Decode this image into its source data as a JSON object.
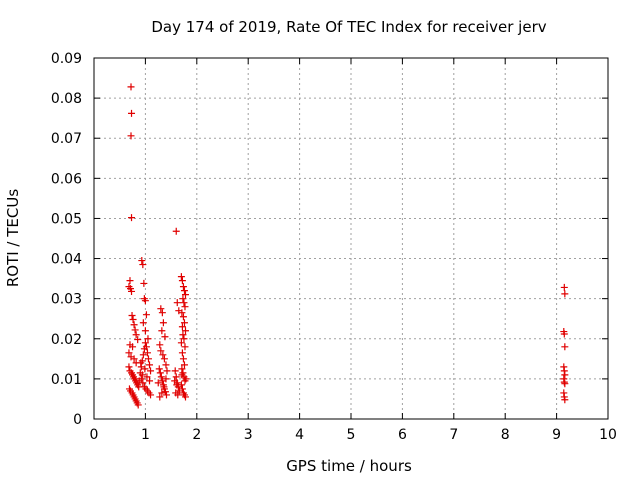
{
  "chart_data": {
    "type": "scatter",
    "title": "Day 174 of 2019, Rate Of TEC Index for receiver jerv",
    "xlabel": "GPS time / hours",
    "ylabel": "ROTI / TECUs",
    "xlim": [
      0,
      10
    ],
    "ylim": [
      0,
      0.09
    ],
    "x_ticks": [
      "0",
      "1",
      "2",
      "3",
      "4",
      "5",
      "6",
      "7",
      "8",
      "9",
      "10"
    ],
    "y_ticks": [
      "0",
      "0.01",
      "0.02",
      "0.03",
      "0.04",
      "0.05",
      "0.06",
      "0.07",
      "0.08",
      "0.09"
    ],
    "grid": true,
    "marker": "+",
    "color": "#e00000",
    "series": [
      {
        "name": "ROTI",
        "points": [
          [
            0.72,
            0.0828
          ],
          [
            0.73,
            0.0762
          ],
          [
            0.72,
            0.0706
          ],
          [
            0.73,
            0.0502
          ],
          [
            0.68,
            0.033
          ],
          [
            0.7,
            0.0345
          ],
          [
            0.71,
            0.0325
          ],
          [
            0.73,
            0.0318
          ],
          [
            0.74,
            0.0258
          ],
          [
            0.76,
            0.0248
          ],
          [
            0.78,
            0.0235
          ],
          [
            0.8,
            0.0222
          ],
          [
            0.82,
            0.021
          ],
          [
            0.85,
            0.0198
          ],
          [
            0.7,
            0.0185
          ],
          [
            0.75,
            0.018
          ],
          [
            0.68,
            0.0165
          ],
          [
            0.72,
            0.0155
          ],
          [
            0.78,
            0.015
          ],
          [
            0.82,
            0.014
          ],
          [
            0.68,
            0.013
          ],
          [
            0.7,
            0.012
          ],
          [
            0.73,
            0.0115
          ],
          [
            0.75,
            0.011
          ],
          [
            0.77,
            0.0105
          ],
          [
            0.79,
            0.01
          ],
          [
            0.81,
            0.0095
          ],
          [
            0.83,
            0.009
          ],
          [
            0.85,
            0.0085
          ],
          [
            0.87,
            0.008
          ],
          [
            0.69,
            0.0075
          ],
          [
            0.71,
            0.007
          ],
          [
            0.74,
            0.0065
          ],
          [
            0.76,
            0.006
          ],
          [
            0.78,
            0.0055
          ],
          [
            0.8,
            0.005
          ],
          [
            0.82,
            0.0045
          ],
          [
            0.84,
            0.004
          ],
          [
            0.86,
            0.0035
          ],
          [
            0.88,
            0.0095
          ],
          [
            0.9,
            0.0115
          ],
          [
            0.92,
            0.013
          ],
          [
            0.94,
            0.0145
          ],
          [
            0.96,
            0.016
          ],
          [
            0.98,
            0.0175
          ],
          [
            1.0,
            0.019
          ],
          [
            1.02,
            0.018
          ],
          [
            1.04,
            0.0165
          ],
          [
            1.06,
            0.015
          ],
          [
            1.08,
            0.0135
          ],
          [
            1.1,
            0.012
          ],
          [
            0.93,
            0.0395
          ],
          [
            0.95,
            0.0385
          ],
          [
            0.97,
            0.0338
          ],
          [
            0.98,
            0.03
          ],
          [
            1.0,
            0.0295
          ],
          [
            1.02,
            0.026
          ],
          [
            0.96,
            0.024
          ],
          [
            1.0,
            0.022
          ],
          [
            1.05,
            0.02
          ],
          [
            0.92,
            0.01
          ],
          [
            0.95,
            0.009
          ],
          [
            0.98,
            0.008
          ],
          [
            1.01,
            0.0075
          ],
          [
            1.04,
            0.007
          ],
          [
            1.07,
            0.0065
          ],
          [
            1.1,
            0.006
          ],
          [
            0.94,
            0.011
          ],
          [
            0.99,
            0.0125
          ],
          [
            1.03,
            0.0105
          ],
          [
            1.08,
            0.0095
          ],
          [
            0.91,
            0.014
          ],
          [
            1.3,
            0.0275
          ],
          [
            1.33,
            0.0265
          ],
          [
            1.35,
            0.024
          ],
          [
            1.32,
            0.022
          ],
          [
            1.38,
            0.0205
          ],
          [
            1.28,
            0.0185
          ],
          [
            1.3,
            0.017
          ],
          [
            1.34,
            0.016
          ],
          [
            1.37,
            0.015
          ],
          [
            1.4,
            0.0135
          ],
          [
            1.27,
            0.0125
          ],
          [
            1.29,
            0.0115
          ],
          [
            1.31,
            0.0105
          ],
          [
            1.33,
            0.0095
          ],
          [
            1.35,
            0.0085
          ],
          [
            1.37,
            0.0075
          ],
          [
            1.39,
            0.0068
          ],
          [
            1.41,
            0.006
          ],
          [
            1.28,
            0.0055
          ],
          [
            1.32,
            0.0065
          ],
          [
            1.36,
            0.008
          ],
          [
            1.4,
            0.01
          ],
          [
            1.42,
            0.012
          ],
          [
            1.25,
            0.009
          ],
          [
            1.6,
            0.0468
          ],
          [
            1.62,
            0.029
          ],
          [
            1.65,
            0.027
          ],
          [
            1.58,
            0.012
          ],
          [
            1.6,
            0.0105
          ],
          [
            1.62,
            0.009
          ],
          [
            1.64,
            0.008
          ],
          [
            1.66,
            0.007
          ],
          [
            1.59,
            0.0065
          ],
          [
            1.63,
            0.006
          ],
          [
            1.61,
            0.0085
          ],
          [
            1.57,
            0.0095
          ],
          [
            1.7,
            0.0355
          ],
          [
            1.72,
            0.0345
          ],
          [
            1.74,
            0.033
          ],
          [
            1.76,
            0.032
          ],
          [
            1.78,
            0.031
          ],
          [
            1.73,
            0.03
          ],
          [
            1.75,
            0.029
          ],
          [
            1.77,
            0.028
          ],
          [
            1.71,
            0.0265
          ],
          [
            1.74,
            0.0255
          ],
          [
            1.76,
            0.024
          ],
          [
            1.72,
            0.023
          ],
          [
            1.78,
            0.022
          ],
          [
            1.73,
            0.021
          ],
          [
            1.75,
            0.02
          ],
          [
            1.7,
            0.019
          ],
          [
            1.77,
            0.018
          ],
          [
            1.72,
            0.0165
          ],
          [
            1.74,
            0.015
          ],
          [
            1.76,
            0.0135
          ],
          [
            1.71,
            0.0125
          ],
          [
            1.73,
            0.0115
          ],
          [
            1.75,
            0.0105
          ],
          [
            1.77,
            0.0095
          ],
          [
            1.7,
            0.0085
          ],
          [
            1.72,
            0.0075
          ],
          [
            1.74,
            0.0065
          ],
          [
            1.76,
            0.006
          ],
          [
            1.78,
            0.0055
          ],
          [
            1.71,
            0.011
          ],
          [
            1.79,
            0.01
          ],
          [
            9.15,
            0.0328
          ],
          [
            9.16,
            0.0312
          ],
          [
            9.14,
            0.0218
          ],
          [
            9.15,
            0.0212
          ],
          [
            9.16,
            0.018
          ],
          [
            9.14,
            0.013
          ],
          [
            9.15,
            0.012
          ],
          [
            9.16,
            0.011
          ],
          [
            9.14,
            0.01
          ],
          [
            9.15,
            0.0092
          ],
          [
            9.16,
            0.0088
          ],
          [
            9.14,
            0.0065
          ],
          [
            9.15,
            0.0055
          ],
          [
            9.16,
            0.0048
          ]
        ]
      }
    ]
  }
}
